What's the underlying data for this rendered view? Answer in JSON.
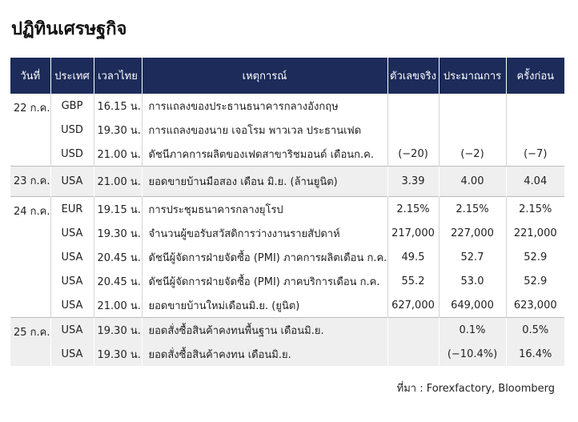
{
  "header": {
    "title": "ปฏิทินเศรษฐกิจ"
  },
  "table": {
    "columns": [
      "วันที่",
      "ประเทศ",
      "เวลาไทย",
      "เหตุการณ์",
      "ตัวเลขจริง",
      "ประมาณการ",
      "ครั้งก่อน"
    ],
    "groups": [
      {
        "date": "22 ก.ค.",
        "rows": [
          [
            "GBP",
            "16.15 น.",
            "การแถลงของประธานธนาคารกลางอังกฤษ",
            null,
            null,
            null
          ],
          [
            "USD",
            "19.30 น.",
            "การแถลงของนาย เจอโรม พาวเวล ประธานเฟด",
            null,
            null,
            null
          ],
          [
            "USD",
            "21.00 น.",
            "ดัชนีภาคการผลิตของเฟดสาขาริชมอนด์ เดือนก.ค.",
            "(−20)",
            "(−2)",
            "(−7)"
          ]
        ]
      },
      {
        "date": "23 ก.ค.",
        "rows": [
          [
            "USA",
            "21.00 น.",
            "ยอดขายบ้านมือสอง เดือน มิ.ย. (ล้านยูนิต)",
            "3.39",
            "4.00",
            "4.04"
          ]
        ]
      },
      {
        "date": "24 ก.ค.",
        "rows": [
          [
            "EUR",
            "19.15 น.",
            "การประชุมธนาคารกลางยุโรป",
            "2.15%",
            "2.15%",
            "2.15%"
          ],
          [
            "USA",
            "19.30 น.",
            "จำนวนผู้ขอรับสวัสดิการว่างงานรายสัปดาห์",
            "217,000",
            "227,000",
            "221,000"
          ],
          [
            "USA",
            "20.45 น.",
            "ดัชนีผู้จัดการฝ่ายจัดซื้อ (PMI) ภาคการผลิตเดือน ก.ค.",
            "49.5",
            "52.7",
            "52.9"
          ],
          [
            "USA",
            "20.45 น.",
            "ดัชนีผู้จัดการฝ่ายจัดซื้อ (PMI) ภาคบริการเดือน ก.ค.",
            "55.2",
            "53.0",
            "52.9"
          ],
          [
            "USA",
            "21.00 น.",
            "ยอดขายบ้านใหม่เดือนมิ.ย. (ยูนิต)",
            "627,000",
            "649,000",
            "623,000"
          ]
        ]
      },
      {
        "date": "25 ก.ค.",
        "rows": [
          [
            "USA",
            "19.30 น.",
            "ยอดสั่งซื้อสินค้าคงทนพื้นฐาน เดือนมิ.ย.",
            null,
            "0.1%",
            "0.5%"
          ],
          [
            "USA",
            "19.30 น.",
            "ยอดสั่งซื้อสินค้าคงทน เดือนมิ.ย.",
            null,
            "(−10.4%)",
            "16.4%"
          ]
        ]
      }
    ]
  },
  "footer": {
    "source": "ที่มา : Forexfactory, Bloomberg"
  }
}
